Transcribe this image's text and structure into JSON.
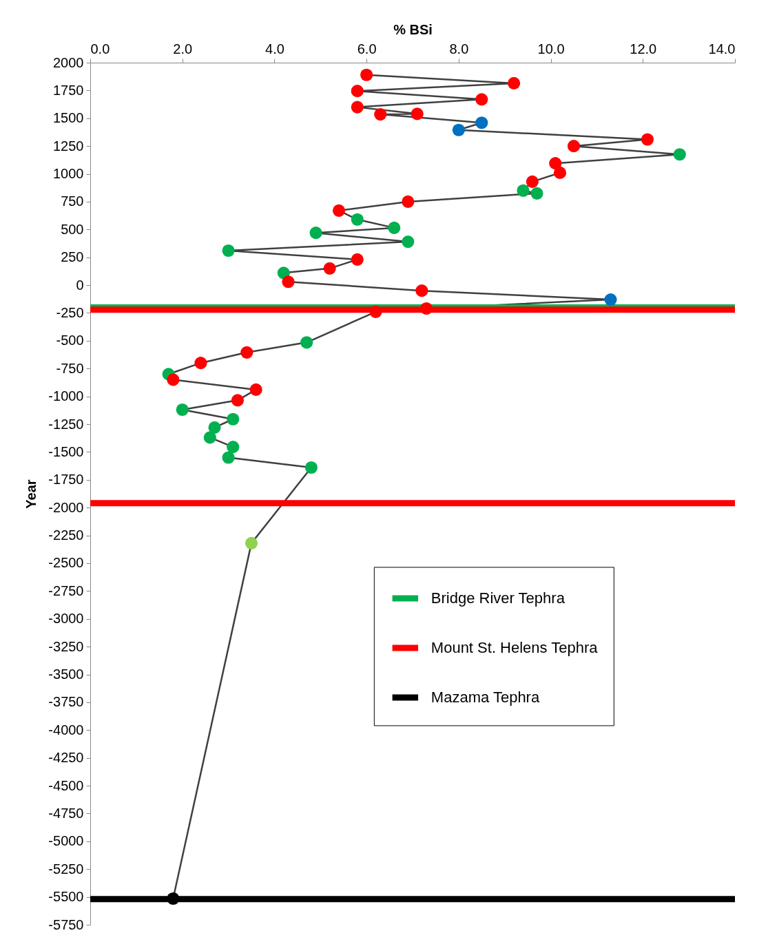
{
  "chart_data": {
    "type": "line",
    "xlabel": "% BSi",
    "ylabel": "Year",
    "x": [
      6.0,
      9.2,
      5.8,
      8.5,
      5.8,
      7.1,
      6.3,
      8.5,
      8.0,
      12.1,
      10.5,
      12.8,
      10.1,
      10.2,
      9.6,
      9.4,
      9.7,
      6.9,
      5.4,
      5.8,
      6.6,
      4.9,
      6.9,
      3.0,
      5.8,
      5.2,
      4.2,
      4.3,
      7.2,
      11.3,
      7.3,
      6.2,
      4.7,
      3.4,
      2.4,
      1.7,
      1.8,
      3.6,
      3.2,
      2.0,
      3.1,
      2.7,
      2.6,
      3.1,
      3.0,
      4.8,
      3.5,
      1.8
    ],
    "series": [
      {
        "color": "#404040",
        "values": [
          1890,
          1815,
          1745,
          1670,
          1600,
          1540,
          1535,
          1460,
          1395,
          1310,
          1250,
          1175,
          1095,
          1010,
          930,
          850,
          825,
          750,
          670,
          590,
          515,
          470,
          390,
          310,
          230,
          150,
          110,
          30,
          -50,
          -130,
          -210,
          -240,
          -515,
          -605,
          -700,
          -800,
          -850,
          -940,
          -1035,
          -1120,
          -1205,
          -1280,
          -1370,
          -1455,
          -1550,
          -1640,
          -2320,
          -5515
        ],
        "colors": [
          "#ff0000",
          "#ff0000",
          "#ff0000",
          "#ff0000",
          "#ff0000",
          "#ff0000",
          "#ff0000",
          "#0070c0",
          "#0070c0",
          "#ff0000",
          "#ff0000",
          "#00b050",
          "#ff0000",
          "#ff0000",
          "#ff0000",
          "#00b050",
          "#00b050",
          "#ff0000",
          "#ff0000",
          "#00b050",
          "#00b050",
          "#00b050",
          "#00b050",
          "#00b050",
          "#ff0000",
          "#ff0000",
          "#00b050",
          "#ff0000",
          "#ff0000",
          "#0070c0",
          "#ff0000",
          "#ff0000",
          "#00b050",
          "#ff0000",
          "#ff0000",
          "#00b050",
          "#ff0000",
          "#ff0000",
          "#ff0000",
          "#00b050",
          "#00b050",
          "#00b050",
          "#00b050",
          "#00b050",
          "#00b050",
          "#00b050",
          "#92d050",
          "#000000"
        ]
      }
    ],
    "marker": "circle",
    "xlim": [
      0,
      14
    ],
    "xticks": [
      {
        "value": 0,
        "label": "0.0"
      },
      {
        "value": 2,
        "label": "2.0"
      },
      {
        "value": 4,
        "label": "4.0"
      },
      {
        "value": 6,
        "label": "6.0"
      },
      {
        "value": 8,
        "label": "8.0"
      },
      {
        "value": 10,
        "label": "10.0"
      },
      {
        "value": 12,
        "label": "12.0"
      },
      {
        "value": 14,
        "label": "14.0"
      }
    ],
    "ylim": [
      -5750,
      2000
    ],
    "yticks": [
      2000,
      1750,
      1500,
      1250,
      1000,
      750,
      500,
      250,
      0,
      -250,
      -500,
      -750,
      -1000,
      -1250,
      -1500,
      -1750,
      -2000,
      -2250,
      -2500,
      -2750,
      -3000,
      -3250,
      -3500,
      -3750,
      -4000,
      -4250,
      -4500,
      -4750,
      -5000,
      -5250,
      -5500,
      -5750
    ],
    "ref_lines": [
      {
        "axis": "y",
        "value": -200,
        "label": "Bridge River Tephra",
        "color": "#00b050"
      },
      {
        "axis": "y",
        "value": -220,
        "label": "Mount St. Helens Tephra",
        "color": "#ff0000"
      },
      {
        "axis": "y",
        "value": -1960,
        "color": "#ff0000"
      },
      {
        "axis": "y",
        "value": -5520,
        "label": "Mazama Tephra",
        "color": "#000000"
      }
    ],
    "legend": "right",
    "grid": false
  }
}
